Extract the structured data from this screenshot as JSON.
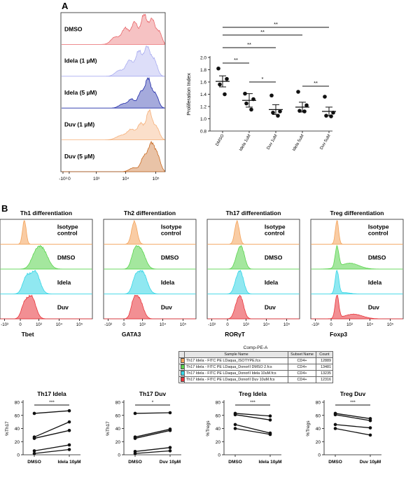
{
  "panels": {
    "a": "A",
    "b": "B"
  },
  "flow_labels": {
    "a_rows": [
      "DMSO",
      "Idela (1 µM)",
      "Idela (5 µM)",
      "Duv (1 µM)",
      "Duv (5 µM)"
    ],
    "a_ticks": [
      "-10³",
      "0",
      "10³",
      "10⁴",
      "10⁵"
    ],
    "b_ticks": [
      "-10³",
      "0",
      "10³",
      "10⁴",
      "10⁵"
    ],
    "b_row_labels": [
      "Isotype\ncontrol",
      "DMSO",
      "Idela",
      "Duv"
    ]
  },
  "colors": {
    "a_rows": [
      "#e8666a",
      "#a9acf0",
      "#1f2aa8",
      "#f5b07a",
      "#c86a22"
    ],
    "b_rows": [
      "#f4a35a",
      "#5ad44e",
      "#36d6e6",
      "#e8343a"
    ]
  },
  "legend": {
    "title": "Comp-PE-A",
    "headers": [
      "Sample Name",
      "Subset Name",
      "Count"
    ],
    "rows": [
      {
        "color": "#f4a35a",
        "sample": "Th17 Idela - FITC PE LDaqua_ISOTYPE.fcs",
        "subset": "CD4+",
        "count": "12889"
      },
      {
        "color": "#5ad44e",
        "sample": "Th17 Idela - FITC PE LDaqua_DonorII DMSO 2.fcs",
        "subset": "CD4+",
        "count": "13481"
      },
      {
        "color": "#36d6e6",
        "sample": "Th17 Idela - FITC PE LDaqua_DonorII Idela 10uM.fcs",
        "subset": "CD4+",
        "count": "13235"
      },
      {
        "color": "#e8343a",
        "sample": "Th17 Idela - FITC PE LDaqua_DonorII Duv 10uM.fcs",
        "subset": "CD4+",
        "count": "12316"
      }
    ]
  },
  "chart_data": [
    {
      "type": "scatter",
      "panel": "A",
      "ylabel": "Proliferation Index",
      "ylim": [
        0.8,
        2.0
      ],
      "yticks": [
        "0.8",
        "1.0",
        "1.2",
        "1.4",
        "1.6",
        "1.8",
        "2.0"
      ],
      "categories": [
        "DMSO",
        "Idela 1uM",
        "Duv 1uM",
        "Idela 5uM",
        "Duv 5uM"
      ],
      "points": [
        [
          1.82,
          1.65,
          1.56,
          1.4
        ],
        [
          1.41,
          1.32,
          1.25,
          1.15
        ],
        [
          1.38,
          1.12,
          1.1,
          1.05
        ],
        [
          1.44,
          1.22,
          1.13,
          1.12
        ],
        [
          1.36,
          1.1,
          1.05,
          1.04
        ]
      ],
      "means": [
        1.61,
        1.3,
        1.15,
        1.19,
        1.12
      ],
      "sem": [
        0.09,
        0.11,
        0.08,
        0.08,
        0.07
      ],
      "significance": [
        {
          "from": 0,
          "to": 1,
          "label": "**"
        },
        {
          "from": 1,
          "to": 2,
          "label": "*"
        },
        {
          "from": 3,
          "to": 4,
          "label": "**"
        },
        {
          "from": 0,
          "to": 2,
          "label": "**"
        },
        {
          "from": 0,
          "to": 3,
          "label": "**"
        },
        {
          "from": 0,
          "to": 4,
          "label": "**"
        }
      ]
    },
    {
      "type": "histogram",
      "panel": "A-flow",
      "rows": [
        "DMSO",
        "Idela (1 µM)",
        "Idela (5 µM)",
        "Duv (1 µM)",
        "Duv (5 µM)"
      ]
    },
    {
      "type": "histogram",
      "panel": "B",
      "titles": [
        "Th1 differentiation",
        "Th2 differentiation",
        "Th17 differentiation",
        "Treg differentiation"
      ],
      "xlabels": [
        "Tbet",
        "GATA3",
        "RORγT",
        "Foxp3"
      ],
      "rows": [
        "Isotype control",
        "DMSO",
        "Idela",
        "Duv"
      ]
    },
    {
      "type": "line",
      "title": "Th17 Idela",
      "ylabel": "%Th17",
      "ylim": [
        0,
        80
      ],
      "yticks": [
        "0",
        "20",
        "40",
        "60",
        "80"
      ],
      "categories": [
        "DMSO",
        "Idela 10µM"
      ],
      "pairs": [
        [
          63,
          67
        ],
        [
          27,
          50
        ],
        [
          25,
          37
        ],
        [
          6,
          15
        ],
        [
          2,
          8
        ]
      ],
      "significance": "***"
    },
    {
      "type": "line",
      "title": "Th17 Duv",
      "ylabel": "%Th17",
      "ylim": [
        0,
        80
      ],
      "yticks": [
        "0",
        "20",
        "40",
        "60",
        "80"
      ],
      "categories": [
        "DMSO",
        "Duv 10µM"
      ],
      "pairs": [
        [
          63,
          64
        ],
        [
          27,
          39
        ],
        [
          25,
          37
        ],
        [
          5,
          11
        ],
        [
          2,
          6
        ]
      ],
      "significance": "*"
    },
    {
      "type": "line",
      "title": "Treg Idela",
      "ylabel": "%Tregs",
      "ylim": [
        0,
        80
      ],
      "yticks": [
        "0",
        "20",
        "40",
        "60",
        "80"
      ],
      "categories": [
        "DMSO",
        "Idela 10µM"
      ],
      "pairs": [
        [
          63,
          59
        ],
        [
          61,
          53
        ],
        [
          46,
          33
        ],
        [
          40,
          31
        ]
      ],
      "significance": "***"
    },
    {
      "type": "line",
      "title": "Treg Duv",
      "ylabel": "%Tregs",
      "ylim": [
        0,
        80
      ],
      "yticks": [
        "0",
        "20",
        "40",
        "60",
        "80"
      ],
      "categories": [
        "DMSO",
        "Duv 10µM"
      ],
      "pairs": [
        [
          63,
          55
        ],
        [
          61,
          52
        ],
        [
          46,
          41
        ],
        [
          40,
          30
        ]
      ],
      "significance": "***"
    }
  ]
}
